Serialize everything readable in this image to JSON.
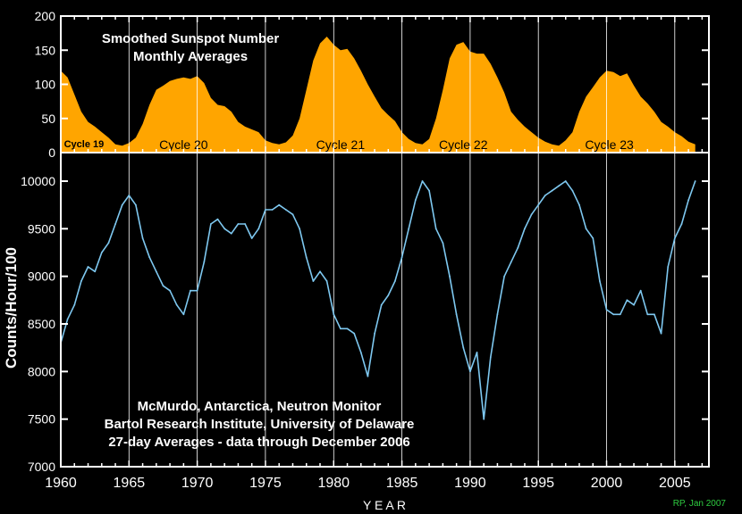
{
  "chart_data": [
    {
      "type": "area",
      "title": [
        "Smoothed Sunspot Number",
        "Monthly Averages"
      ],
      "xlabel": "",
      "ylabel": "",
      "xlim": [
        1960,
        2007.5
      ],
      "ylim": [
        0,
        200
      ],
      "yticks": [
        0,
        50,
        100,
        150,
        200
      ],
      "grid_x": true,
      "fill_color": "#FFA500",
      "cycle_labels": [
        {
          "label": "Cycle 19",
          "x": 1961.7
        },
        {
          "label": "Cycle 20",
          "x": 1969.0
        },
        {
          "label": "Cycle 21",
          "x": 1980.5
        },
        {
          "label": "Cycle 22",
          "x": 1989.5
        },
        {
          "label": "Cycle 23",
          "x": 2000.2
        }
      ],
      "series": [
        {
          "x": [
            1960.0,
            1960.5,
            1961.0,
            1961.5,
            1962.0,
            1962.5,
            1963.0,
            1963.5,
            1964.0,
            1964.5,
            1965.0,
            1965.5,
            1966.0,
            1966.5,
            1967.0,
            1967.5,
            1968.0,
            1968.5,
            1969.0,
            1969.5,
            1970.0,
            1970.5,
            1971.0,
            1971.5,
            1972.0,
            1972.5,
            1973.0,
            1973.5,
            1974.0,
            1974.5,
            1975.0,
            1975.5,
            1976.0,
            1976.5,
            1977.0,
            1977.5,
            1978.0,
            1978.5,
            1979.0,
            1979.5,
            1980.0,
            1980.5,
            1981.0,
            1981.5,
            1982.0,
            1982.5,
            1983.0,
            1983.5,
            1984.0,
            1984.5,
            1985.0,
            1985.5,
            1986.0,
            1986.5,
            1987.0,
            1987.5,
            1988.0,
            1988.5,
            1989.0,
            1989.5,
            1990.0,
            1990.5,
            1991.0,
            1991.5,
            1992.0,
            1992.5,
            1993.0,
            1993.5,
            1994.0,
            1994.5,
            1995.0,
            1995.5,
            1996.0,
            1996.5,
            1997.0,
            1997.5,
            1998.0,
            1998.5,
            1999.0,
            1999.5,
            2000.0,
            2000.5,
            2001.0,
            2001.5,
            2002.0,
            2002.5,
            2003.0,
            2003.5,
            2004.0,
            2004.5,
            2005.0,
            2005.5,
            2006.0,
            2006.5
          ],
          "values": [
            120,
            110,
            85,
            60,
            45,
            38,
            30,
            22,
            12,
            10,
            14,
            22,
            42,
            70,
            92,
            98,
            105,
            108,
            110,
            108,
            112,
            102,
            80,
            70,
            68,
            60,
            45,
            38,
            34,
            30,
            18,
            14,
            12,
            15,
            25,
            50,
            92,
            135,
            160,
            170,
            158,
            150,
            152,
            138,
            120,
            100,
            82,
            65,
            55,
            46,
            30,
            20,
            14,
            12,
            20,
            50,
            92,
            138,
            158,
            162,
            148,
            145,
            145,
            130,
            110,
            88,
            60,
            48,
            38,
            30,
            22,
            16,
            12,
            10,
            18,
            30,
            60,
            82,
            96,
            110,
            120,
            118,
            112,
            116,
            98,
            82,
            72,
            60,
            45,
            38,
            30,
            24,
            16,
            12
          ]
        }
      ]
    },
    {
      "type": "line",
      "xlabel": "Y E A R",
      "ylabel": "Counts/Hour/100",
      "xlim": [
        1960,
        2007.5
      ],
      "ylim": [
        7000,
        10300
      ],
      "xticks": [
        1960,
        1965,
        1970,
        1975,
        1980,
        1985,
        1990,
        1995,
        2000,
        2005
      ],
      "yticks": [
        7000,
        7500,
        8000,
        8500,
        9000,
        9500,
        10000
      ],
      "grid_x": true,
      "line_color": "#7EC8F0",
      "annotation": [
        "McMurdo, Antarctica, Neutron Monitor",
        "Bartol Research Institute, University of Delaware",
        "27-day Averages - data through December 2006"
      ],
      "series": [
        {
          "x": [
            1960.0,
            1960.5,
            1961.0,
            1961.5,
            1962.0,
            1962.5,
            1963.0,
            1963.5,
            1964.0,
            1964.5,
            1965.0,
            1965.5,
            1966.0,
            1966.5,
            1967.0,
            1967.5,
            1968.0,
            1968.5,
            1969.0,
            1969.5,
            1970.0,
            1970.5,
            1971.0,
            1971.5,
            1972.0,
            1972.5,
            1973.0,
            1973.5,
            1974.0,
            1974.5,
            1975.0,
            1975.5,
            1976.0,
            1976.5,
            1977.0,
            1977.5,
            1978.0,
            1978.5,
            1979.0,
            1979.5,
            1980.0,
            1980.5,
            1981.0,
            1981.5,
            1982.0,
            1982.5,
            1983.0,
            1983.5,
            1984.0,
            1984.5,
            1985.0,
            1985.5,
            1986.0,
            1986.5,
            1987.0,
            1987.5,
            1988.0,
            1988.5,
            1989.0,
            1989.5,
            1990.0,
            1990.5,
            1991.0,
            1991.5,
            1992.0,
            1992.5,
            1993.0,
            1993.5,
            1994.0,
            1994.5,
            1995.0,
            1995.5,
            1996.0,
            1996.5,
            1997.0,
            1997.5,
            1998.0,
            1998.5,
            1999.0,
            1999.5,
            2000.0,
            2000.5,
            2001.0,
            2001.5,
            2002.0,
            2002.5,
            2003.0,
            2003.5,
            2004.0,
            2004.5,
            2005.0,
            2005.5,
            2006.0,
            2006.5
          ],
          "values": [
            8300,
            8550,
            8700,
            8950,
            9100,
            9050,
            9250,
            9350,
            9550,
            9750,
            9850,
            9750,
            9400,
            9200,
            9050,
            8900,
            8850,
            8700,
            8600,
            8850,
            8850,
            9150,
            9550,
            9600,
            9500,
            9450,
            9550,
            9550,
            9400,
            9500,
            9700,
            9700,
            9750,
            9700,
            9650,
            9500,
            9200,
            8950,
            9050,
            8950,
            8600,
            8450,
            8450,
            8400,
            8200,
            7950,
            8400,
            8700,
            8800,
            8950,
            9200,
            9500,
            9800,
            10000,
            9900,
            9500,
            9350,
            9000,
            8600,
            8250,
            8000,
            8200,
            7500,
            8150,
            8600,
            9000,
            9150,
            9300,
            9500,
            9650,
            9750,
            9850,
            9900,
            9950,
            10000,
            9900,
            9750,
            9500,
            9400,
            8950,
            8650,
            8600,
            8600,
            8750,
            8700,
            8850,
            8600,
            8600,
            8400,
            9100,
            9400,
            9550,
            9800,
            10000
          ]
        }
      ]
    }
  ],
  "footer": {
    "credit": "RP, Jan 2007"
  }
}
